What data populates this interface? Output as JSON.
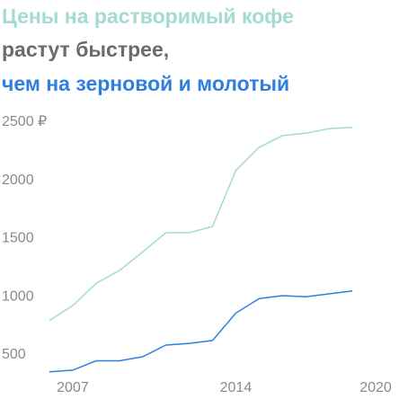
{
  "chart_data": {
    "type": "line",
    "title": [
      "Цены на растворимый кофе",
      "растут быстрее,",
      "чем на зерновой и молотый"
    ],
    "title_colors": [
      "#a3dbd3",
      "#6b6b6b",
      "#2f7fe0"
    ],
    "x": [
      2006,
      2007,
      2008,
      2009,
      2010,
      2011,
      2012,
      2013,
      2014,
      2015,
      2016,
      2017,
      2018,
      2019
    ],
    "series": [
      {
        "color": "#a3dbd3",
        "values": [
          810,
          940,
          1130,
          1240,
          1400,
          1565,
          1565,
          1620,
          2100,
          2300,
          2400,
          2420,
          2460,
          2470
        ]
      },
      {
        "color": "#2f7fe0",
        "values": [
          370,
          385,
          465,
          465,
          500,
          600,
          615,
          640,
          875,
          1000,
          1025,
          1015,
          1040,
          1065
        ]
      }
    ],
    "xlim": [
      2006,
      2020
    ],
    "xticks": [
      2007,
      2014,
      2020
    ],
    "ylim": [
      330,
      2600
    ],
    "yticks": [
      500,
      1000,
      1500,
      2000,
      {
        "value": 2500,
        "label": "2500 ₽"
      }
    ],
    "grid": false
  }
}
